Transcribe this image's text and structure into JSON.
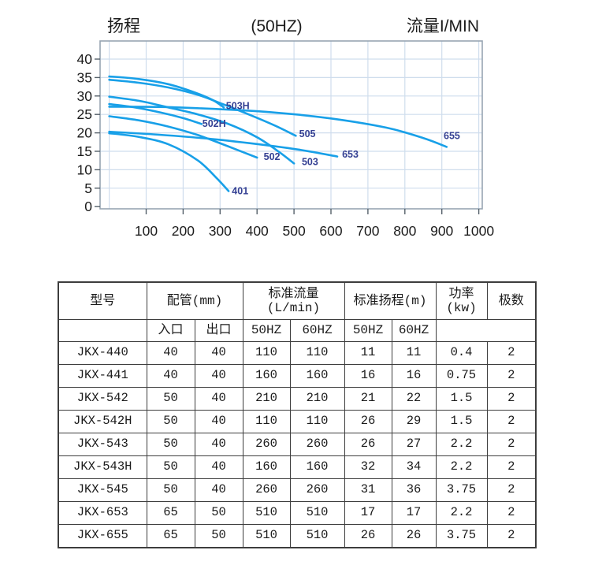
{
  "chart": {
    "colors": {
      "curve": "#18a0e8",
      "curve_label": "#344093",
      "freq_title": "#2eb5ef",
      "grid": "#cfdded",
      "plot_border": "#97a5b2",
      "tick": "#55606a"
    }
  },
  "chart_data": {
    "type": "line",
    "title": "(50HZ)",
    "ylabel": "扬程",
    "xlabel": "流量I/MIN",
    "xlim": [
      -25,
      1010
    ],
    "ylim": [
      0,
      45
    ],
    "grid": true,
    "x_gridlines": [
      0,
      100,
      200,
      300,
      400,
      500,
      600,
      700,
      800,
      900,
      1000
    ],
    "x_ticks": [
      100,
      200,
      300,
      400,
      500,
      600,
      700,
      800,
      900,
      1000
    ],
    "y_gridlines": [
      5,
      10,
      15,
      20,
      25,
      30,
      35,
      40
    ],
    "y_ticks": [
      0,
      5,
      10,
      15,
      20,
      25,
      30,
      35,
      40
    ],
    "series": [
      {
        "name": "401",
        "points": [
          [
            0,
            19.9
          ],
          [
            80,
            18.9
          ],
          [
            160,
            16.9
          ],
          [
            240,
            12.5
          ],
          [
            290,
            7.8
          ],
          [
            323,
            4.2
          ]
        ],
        "label_at": [
          332,
          3.4
        ]
      },
      {
        "name": "502",
        "points": [
          [
            0,
            24.5
          ],
          [
            80,
            23.4
          ],
          [
            160,
            21.7
          ],
          [
            240,
            19.4
          ],
          [
            320,
            16.4
          ],
          [
            400,
            13.3
          ]
        ],
        "label_at": [
          418,
          12.7
        ]
      },
      {
        "name": "502H",
        "points": [
          [
            0,
            27.8
          ],
          [
            70,
            26.9
          ],
          [
            140,
            25.5
          ],
          [
            200,
            24.0
          ],
          [
            250,
            22.4
          ]
        ],
        "label_at": [
          252,
          21.6
        ]
      },
      {
        "name": "503",
        "points": [
          [
            0,
            29.8
          ],
          [
            80,
            28.7
          ],
          [
            160,
            26.9
          ],
          [
            240,
            25.0
          ],
          [
            320,
            22.5
          ],
          [
            400,
            18.8
          ],
          [
            460,
            14.8
          ],
          [
            500,
            11.7
          ]
        ],
        "label_at": [
          521,
          11.3
        ]
      },
      {
        "name": "503H",
        "points": [
          [
            0,
            35.3
          ],
          [
            80,
            34.6
          ],
          [
            160,
            33.2
          ],
          [
            230,
            31.0
          ],
          [
            280,
            28.9
          ],
          [
            310,
            26.9
          ]
        ],
        "label_at": [
          316,
          26.4
        ]
      },
      {
        "name": "505",
        "points": [
          [
            0,
            34.4
          ],
          [
            80,
            33.6
          ],
          [
            160,
            32.3
          ],
          [
            240,
            30.3
          ],
          [
            310,
            27.7
          ],
          [
            380,
            24.9
          ],
          [
            450,
            21.9
          ],
          [
            505,
            19.2
          ]
        ],
        "label_at": [
          514,
          18.8
        ]
      },
      {
        "name": "653",
        "points": [
          [
            0,
            20.3
          ],
          [
            120,
            19.6
          ],
          [
            250,
            18.6
          ],
          [
            380,
            17.2
          ],
          [
            510,
            15.5
          ],
          [
            617,
            13.6
          ]
        ],
        "label_at": [
          630,
          13.3
        ]
      },
      {
        "name": "655",
        "points": [
          [
            0,
            27.1
          ],
          [
            150,
            27.0
          ],
          [
            300,
            26.4
          ],
          [
            450,
            25.5
          ],
          [
            600,
            23.9
          ],
          [
            750,
            21.4
          ],
          [
            850,
            18.6
          ],
          [
            913,
            16.2
          ]
        ],
        "label_at": [
          905,
          18.3
        ]
      }
    ]
  },
  "table": {
    "headers": {
      "model": "型号",
      "piping_group": "配管(mm)",
      "flow_line1": "标准流量",
      "flow_line2": "(L/min)",
      "head_group": "标准扬程(m)",
      "power_line1": "功率",
      "power_line2": "(kw)",
      "poles": "极数",
      "inlet": "入口",
      "outlet": "出口",
      "flow_hz50": "50HZ",
      "flow_hz60": "60HZ",
      "head_hz50": "50HZ",
      "head_hz60": "60HZ"
    },
    "rows": [
      [
        "JKX-440",
        "40",
        "40",
        "110",
        "110",
        "11",
        "11",
        "0.4",
        "2"
      ],
      [
        "JKX-441",
        "40",
        "40",
        "160",
        "160",
        "16",
        "16",
        "0.75",
        "2"
      ],
      [
        "JKX-542",
        "50",
        "40",
        "210",
        "210",
        "21",
        "22",
        "1.5",
        "2"
      ],
      [
        "JKX-542H",
        "50",
        "40",
        "110",
        "110",
        "26",
        "29",
        "1.5",
        "2"
      ],
      [
        "JKX-543",
        "50",
        "40",
        "260",
        "260",
        "26",
        "27",
        "2.2",
        "2"
      ],
      [
        "JKX-543H",
        "50",
        "40",
        "160",
        "160",
        "32",
        "34",
        "2.2",
        "2"
      ],
      [
        "JKX-545",
        "50",
        "40",
        "260",
        "260",
        "31",
        "36",
        "3.75",
        "2"
      ],
      [
        "JKX-653",
        "65",
        "50",
        "510",
        "510",
        "17",
        "17",
        "2.2",
        "2"
      ],
      [
        "JKX-655",
        "65",
        "50",
        "510",
        "510",
        "26",
        "26",
        "3.75",
        "2"
      ]
    ]
  }
}
